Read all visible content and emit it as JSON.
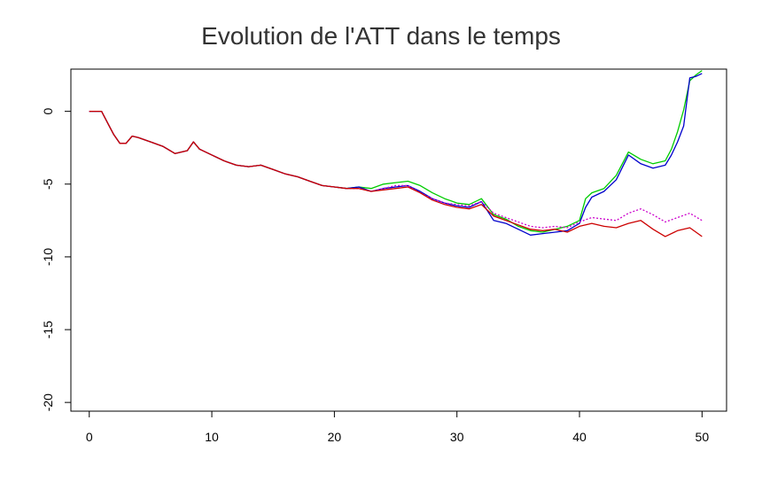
{
  "chart_data": {
    "type": "line",
    "title": "Evolution de l'ATT dans le temps",
    "xlabel": "",
    "ylabel": "",
    "xlim": [
      -1.5,
      52
    ],
    "ylim": [
      -20.6,
      2.9
    ],
    "x_ticks": [
      0,
      10,
      20,
      30,
      40,
      50
    ],
    "x_tick_labels": [
      "0",
      "10",
      "20",
      "30",
      "40",
      "50"
    ],
    "y_ticks": [
      0,
      -5,
      -10,
      -15,
      -20
    ],
    "y_tick_labels": [
      "0",
      "-5",
      "-10",
      "-15",
      "-20"
    ],
    "grid": false,
    "legend": "none",
    "series": [
      {
        "color": "#00cc00",
        "dash": "",
        "x": [
          0,
          1,
          1.5,
          2,
          2.5,
          3,
          3.5,
          4,
          5,
          6,
          7,
          8,
          8.5,
          9,
          10,
          11,
          12,
          13,
          14,
          15,
          16,
          17,
          18,
          19,
          20,
          21,
          22,
          23,
          24,
          25,
          26,
          27,
          28,
          29,
          30,
          31,
          32,
          33,
          34,
          35,
          36,
          37,
          38,
          39,
          40,
          40.5,
          41,
          42,
          43,
          44,
          45,
          46,
          47,
          47.5,
          48,
          48.5,
          49,
          49.5,
          50
        ],
        "values": [
          0,
          0,
          -0.8,
          -1.6,
          -2.2,
          -2.2,
          -1.7,
          -1.8,
          -2.1,
          -2.4,
          -2.9,
          -2.7,
          -2.1,
          -2.6,
          -3.0,
          -3.4,
          -3.7,
          -3.8,
          -3.7,
          -4.0,
          -4.3,
          -4.5,
          -4.8,
          -5.1,
          -5.2,
          -5.3,
          -5.2,
          -5.3,
          -5.0,
          -4.9,
          -4.8,
          -5.1,
          -5.6,
          -6.0,
          -6.3,
          -6.4,
          -6.0,
          -7.1,
          -7.4,
          -7.9,
          -8.2,
          -8.3,
          -8.1,
          -7.9,
          -7.5,
          -6.0,
          -5.6,
          -5.3,
          -4.4,
          -2.8,
          -3.3,
          -3.6,
          -3.4,
          -2.6,
          -1.4,
          0.1,
          2.1,
          2.5,
          2.8
        ]
      },
      {
        "color": "#0000cc",
        "dash": "",
        "x": [
          0,
          1,
          1.5,
          2,
          2.5,
          3,
          3.5,
          4,
          5,
          6,
          7,
          8,
          8.5,
          9,
          10,
          11,
          12,
          13,
          14,
          15,
          16,
          17,
          18,
          19,
          20,
          21,
          22,
          23,
          24,
          25,
          26,
          27,
          28,
          29,
          30,
          31,
          32,
          33,
          34,
          35,
          36,
          37,
          38,
          39,
          40,
          40.5,
          41,
          42,
          43,
          44,
          45,
          46,
          47,
          47.5,
          48,
          48.5,
          49,
          49.5,
          50
        ],
        "values": [
          0,
          0,
          -0.8,
          -1.6,
          -2.2,
          -2.2,
          -1.7,
          -1.8,
          -2.1,
          -2.4,
          -2.9,
          -2.7,
          -2.1,
          -2.6,
          -3.0,
          -3.4,
          -3.7,
          -3.8,
          -3.7,
          -4.0,
          -4.3,
          -4.5,
          -4.8,
          -5.1,
          -5.2,
          -5.3,
          -5.2,
          -5.5,
          -5.3,
          -5.2,
          -5.1,
          -5.5,
          -6.0,
          -6.3,
          -6.5,
          -6.6,
          -6.2,
          -7.5,
          -7.7,
          -8.1,
          -8.5,
          -8.4,
          -8.3,
          -8.2,
          -7.7,
          -6.6,
          -5.9,
          -5.5,
          -4.7,
          -3.0,
          -3.6,
          -3.9,
          -3.7,
          -3.0,
          -2.1,
          -1.0,
          2.3,
          2.4,
          2.6
        ]
      },
      {
        "color": "#cc00cc",
        "dash": "2,2",
        "x": [
          0,
          1,
          1.5,
          2,
          2.5,
          3,
          3.5,
          4,
          5,
          6,
          7,
          8,
          8.5,
          9,
          10,
          11,
          12,
          13,
          14,
          15,
          16,
          17,
          18,
          19,
          20,
          21,
          22,
          23,
          24,
          25,
          26,
          27,
          28,
          29,
          30,
          31,
          32,
          33,
          34,
          35,
          36,
          37,
          38,
          39,
          40,
          41,
          42,
          43,
          44,
          45,
          46,
          47,
          48,
          49,
          50
        ],
        "values": [
          0,
          0,
          -0.8,
          -1.6,
          -2.2,
          -2.2,
          -1.7,
          -1.8,
          -2.1,
          -2.4,
          -2.9,
          -2.7,
          -2.1,
          -2.6,
          -3.0,
          -3.4,
          -3.7,
          -3.8,
          -3.7,
          -4.0,
          -4.3,
          -4.5,
          -4.8,
          -5.1,
          -5.2,
          -5.3,
          -5.3,
          -5.5,
          -5.3,
          -5.1,
          -5.1,
          -5.6,
          -6.0,
          -6.3,
          -6.4,
          -6.5,
          -6.2,
          -7.0,
          -7.3,
          -7.6,
          -7.9,
          -8.0,
          -7.9,
          -8.0,
          -7.6,
          -7.3,
          -7.4,
          -7.5,
          -7.0,
          -6.7,
          -7.1,
          -7.6,
          -7.3,
          -7.0,
          -7.5
        ]
      },
      {
        "color": "#cc0000",
        "dash": "",
        "x": [
          0,
          1,
          1.5,
          2,
          2.5,
          3,
          3.5,
          4,
          5,
          6,
          7,
          8,
          8.5,
          9,
          10,
          11,
          12,
          13,
          14,
          15,
          16,
          17,
          18,
          19,
          20,
          21,
          22,
          23,
          24,
          25,
          26,
          27,
          28,
          29,
          30,
          31,
          32,
          33,
          34,
          35,
          36,
          37,
          38,
          39,
          40,
          41,
          42,
          43,
          44,
          45,
          46,
          47,
          48,
          49,
          50
        ],
        "values": [
          0,
          0,
          -0.8,
          -1.6,
          -2.2,
          -2.2,
          -1.7,
          -1.8,
          -2.1,
          -2.4,
          -2.9,
          -2.7,
          -2.1,
          -2.6,
          -3.0,
          -3.4,
          -3.7,
          -3.8,
          -3.7,
          -4.0,
          -4.3,
          -4.5,
          -4.8,
          -5.1,
          -5.2,
          -5.3,
          -5.3,
          -5.5,
          -5.4,
          -5.3,
          -5.2,
          -5.6,
          -6.1,
          -6.4,
          -6.6,
          -6.7,
          -6.4,
          -7.2,
          -7.5,
          -7.8,
          -8.1,
          -8.2,
          -8.1,
          -8.3,
          -7.9,
          -7.7,
          -7.9,
          -8.0,
          -7.7,
          -7.5,
          -8.1,
          -8.6,
          -8.2,
          -8.0,
          -8.6
        ]
      }
    ]
  }
}
